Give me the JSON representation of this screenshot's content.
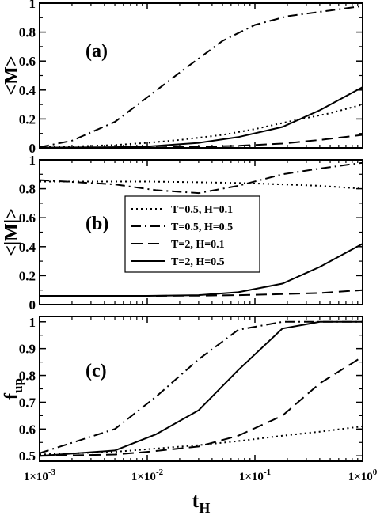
{
  "chart_data": [
    {
      "type": "line",
      "panel_label": "(a)",
      "ylabel": "<M>",
      "xscale": "log",
      "xlim": [
        0.001,
        1
      ],
      "ylim": [
        0,
        1
      ],
      "yticks": [
        0,
        0.2,
        0.4,
        0.6,
        0.8,
        1
      ],
      "ytick_labels": [
        "0",
        "0.2",
        "0.4",
        "0.6",
        "0.8",
        "1"
      ],
      "series": [
        {
          "name": "T=0.5, H=0.1",
          "style": "dotted",
          "x": [
            0.001,
            0.002,
            0.005,
            0.01,
            0.02,
            0.05,
            0.1,
            0.2,
            0.5,
            1
          ],
          "y": [
            0.005,
            0.01,
            0.02,
            0.035,
            0.055,
            0.09,
            0.13,
            0.18,
            0.24,
            0.3
          ]
        },
        {
          "name": "T=0.5, H=0.5",
          "style": "dashdot",
          "x": [
            0.001,
            0.002,
            0.005,
            0.01,
            0.02,
            0.05,
            0.1,
            0.2,
            0.5,
            1
          ],
          "y": [
            0.005,
            0.05,
            0.18,
            0.35,
            0.52,
            0.74,
            0.85,
            0.91,
            0.95,
            0.98
          ]
        },
        {
          "name": "T=2, H=0.1",
          "style": "dashed",
          "x": [
            0.001,
            0.005,
            0.01,
            0.03,
            0.07,
            0.18,
            0.4,
            1
          ],
          "y": [
            0.0,
            0.0,
            0.003,
            0.008,
            0.015,
            0.03,
            0.055,
            0.09
          ]
        },
        {
          "name": "T=2, H=0.5",
          "style": "solid",
          "x": [
            0.001,
            0.005,
            0.01,
            0.03,
            0.07,
            0.18,
            0.4,
            1
          ],
          "y": [
            0.002,
            0.005,
            0.01,
            0.035,
            0.075,
            0.145,
            0.26,
            0.42
          ]
        }
      ]
    },
    {
      "type": "line",
      "panel_label": "(b)",
      "ylabel": "<|M|>",
      "xscale": "log",
      "xlim": [
        0.001,
        1
      ],
      "ylim": [
        0,
        1
      ],
      "yticks": [
        0,
        0.2,
        0.4,
        0.6,
        0.8,
        1
      ],
      "ytick_labels": [
        "0",
        "0.2",
        "0.4",
        "0.6",
        "0.8",
        "1"
      ],
      "legend": {
        "position": "center-left",
        "entries": [
          {
            "label": "T=0.5, H=0.1",
            "style": "dotted"
          },
          {
            "label": "T=0.5, H=0.5",
            "style": "dashdot"
          },
          {
            "label": "T=2, H=0.1",
            "style": "dashed"
          },
          {
            "label": "T=2, H=0.5",
            "style": "solid"
          }
        ]
      },
      "series": [
        {
          "name": "T=0.5, H=0.1",
          "style": "dotted",
          "x": [
            0.001,
            0.01,
            0.03,
            0.07,
            0.18,
            0.4,
            1
          ],
          "y": [
            0.85,
            0.85,
            0.845,
            0.84,
            0.83,
            0.82,
            0.8
          ]
        },
        {
          "name": "T=0.5, H=0.5",
          "style": "dashdot",
          "x": [
            0.001,
            0.005,
            0.012,
            0.03,
            0.07,
            0.18,
            0.4,
            1
          ],
          "y": [
            0.86,
            0.83,
            0.79,
            0.77,
            0.82,
            0.9,
            0.94,
            0.98
          ]
        },
        {
          "name": "T=2, H=0.1",
          "style": "dashed",
          "x": [
            0.001,
            0.01,
            0.03,
            0.07,
            0.18,
            0.4,
            1
          ],
          "y": [
            0.06,
            0.06,
            0.062,
            0.065,
            0.072,
            0.08,
            0.1
          ]
        },
        {
          "name": "T=2, H=0.5",
          "style": "solid",
          "x": [
            0.001,
            0.01,
            0.03,
            0.07,
            0.18,
            0.4,
            1
          ],
          "y": [
            0.06,
            0.06,
            0.065,
            0.085,
            0.145,
            0.26,
            0.42
          ]
        }
      ]
    },
    {
      "type": "line",
      "panel_label": "(c)",
      "ylabel": "f_up",
      "ylabel_main": "f",
      "ylabel_sub": "up",
      "xlabel": "t_H",
      "xlabel_main": "t",
      "xlabel_sub": "H",
      "xscale": "log",
      "xlim": [
        0.001,
        1
      ],
      "ylim": [
        0.48,
        1.02
      ],
      "yticks": [
        0.5,
        0.6,
        0.7,
        0.8,
        0.9,
        1
      ],
      "ytick_labels": [
        "0.5",
        "0.6",
        "0.7",
        "0.8",
        "0.9",
        "1"
      ],
      "xticks": [
        0.001,
        0.01,
        0.1,
        1
      ],
      "xtick_labels": [
        {
          "base": "1×10",
          "exp": "-3"
        },
        {
          "base": "1×10",
          "exp": "-2"
        },
        {
          "base": "1×10",
          "exp": "-1"
        },
        {
          "base": "1×10",
          "exp": "0"
        }
      ],
      "series": [
        {
          "name": "T=0.5, H=0.1",
          "style": "dotted",
          "x": [
            0.001,
            0.005,
            0.01,
            0.03,
            0.07,
            0.18,
            0.4,
            1
          ],
          "y": [
            0.505,
            0.515,
            0.525,
            0.54,
            0.555,
            0.575,
            0.59,
            0.61
          ]
        },
        {
          "name": "T=0.5, H=0.5",
          "style": "dashdot",
          "x": [
            0.001,
            0.005,
            0.012,
            0.03,
            0.07,
            0.18,
            0.4,
            1
          ],
          "y": [
            0.51,
            0.6,
            0.72,
            0.86,
            0.97,
            1.0,
            1.0,
            1.0
          ]
        },
        {
          "name": "T=2, H=0.1",
          "style": "dashed",
          "x": [
            0.001,
            0.005,
            0.01,
            0.03,
            0.07,
            0.18,
            0.4,
            1
          ],
          "y": [
            0.5,
            0.505,
            0.515,
            0.535,
            0.575,
            0.65,
            0.77,
            0.87
          ]
        },
        {
          "name": "T=2, H=0.5",
          "style": "solid",
          "x": [
            0.001,
            0.005,
            0.012,
            0.03,
            0.07,
            0.18,
            0.4,
            1
          ],
          "y": [
            0.5,
            0.52,
            0.58,
            0.67,
            0.82,
            0.975,
            1.0,
            1.0
          ]
        }
      ]
    }
  ]
}
